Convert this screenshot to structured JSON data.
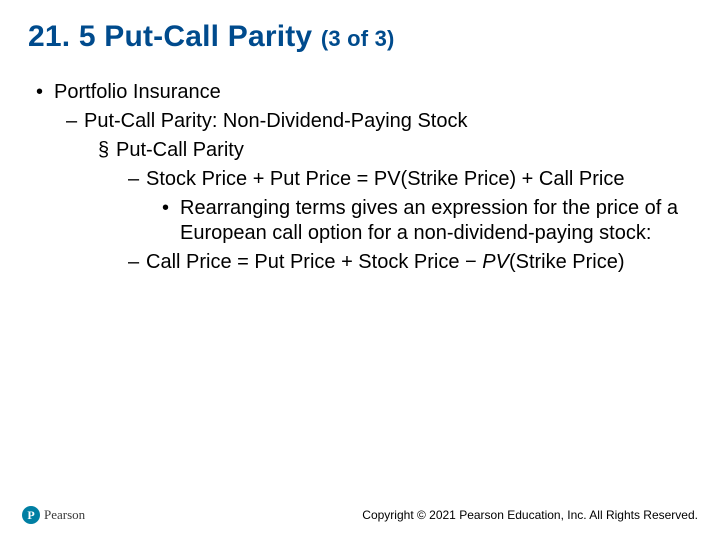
{
  "title_main": "21. 5 Put-Call Parity ",
  "title_sub": "(3 of 3)",
  "bullets": {
    "l1": "Portfolio Insurance",
    "l2": "Put-Call Parity: Non-Dividend-Paying Stock",
    "l3": "Put-Call Parity",
    "l4a": "Stock Price + Put Price = PV(Strike Price) + Call Price",
    "l5": "Rearranging terms gives an expression for the price of a European call option for a non-dividend-paying stock:",
    "l4b_pre": "Call Price = Put Price + Stock Price − ",
    "l4b_pv": "PV",
    "l4b_post": "(Strike Price)"
  },
  "glyphs": {
    "dot": "•",
    "endash": "–",
    "square": "§"
  },
  "footer": {
    "brand": "Pearson",
    "copyright": "Copyright © 2021 Pearson Education, Inc. All Rights Reserved."
  },
  "colors": {
    "title": "#004b8d",
    "text": "#000000",
    "logo": "#007fa3",
    "background": "#ffffff"
  }
}
